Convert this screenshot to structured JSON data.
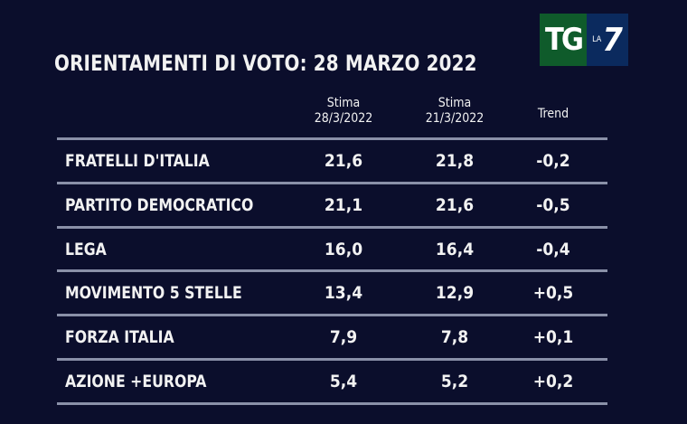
{
  "chart_data": {
    "type": "table",
    "title": "ORIENTAMENTI DI VOTO: 28 MARZO 2022",
    "columns": [
      {
        "line1": "Stima",
        "line2": "28/3/2022"
      },
      {
        "line1": "Stima",
        "line2": "21/3/2022"
      },
      {
        "line1": "Trend",
        "line2": ""
      }
    ],
    "rows": [
      {
        "party": "FRATELLI D'ITALIA",
        "current": "21,6",
        "previous": "21,8",
        "trend": "-0,2"
      },
      {
        "party": "PARTITO DEMOCRATICO",
        "current": "21,1",
        "previous": "21,6",
        "trend": "-0,5"
      },
      {
        "party": "LEGA",
        "current": "16,0",
        "previous": "16,4",
        "trend": "-0,4"
      },
      {
        "party": "MOVIMENTO 5 STELLE",
        "current": "13,4",
        "previous": "12,9",
        "trend": "+0,5"
      },
      {
        "party": "FORZA ITALIA",
        "current": "7,9",
        "previous": "7,8",
        "trend": "+0,1"
      },
      {
        "party": "AZIONE +EUROPA",
        "current": "5,4",
        "previous": "5,2",
        "trend": "+0,2"
      }
    ]
  },
  "logo": {
    "tg": "TG",
    "la": "LA",
    "seven": "7"
  },
  "colors": {
    "background": "#0b0e2c",
    "logo_green": "#0f5b2b",
    "logo_blue": "#0b2a5e"
  }
}
